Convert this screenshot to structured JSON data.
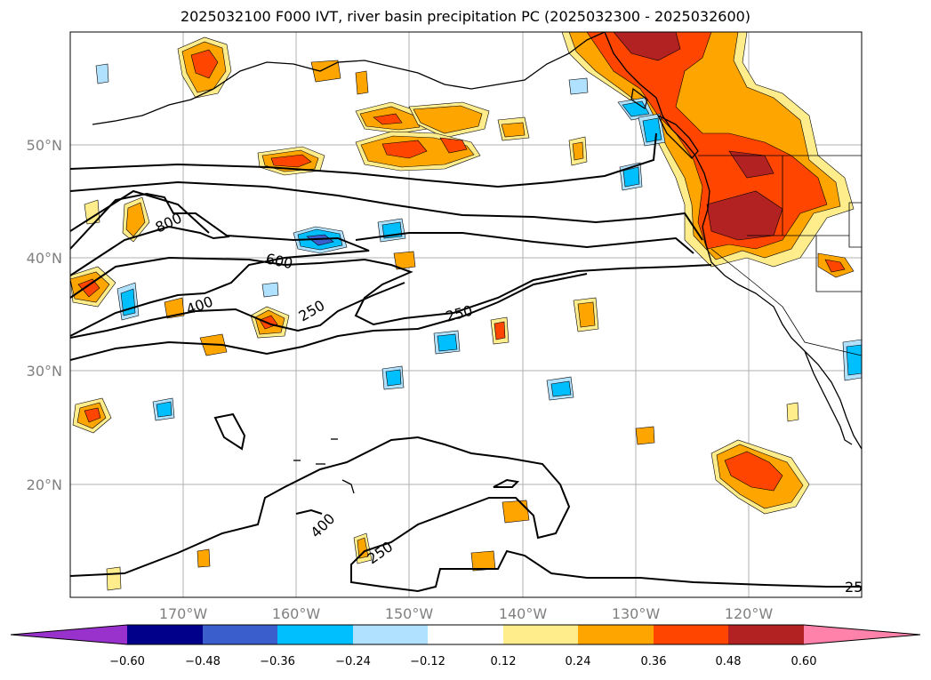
{
  "title": "2025032100 F000 IVT, river basin precipitation PC (2025032300 - 2025032600)",
  "map": {
    "lon_ticks": [
      "170°W",
      "160°W",
      "150°W",
      "140°W",
      "130°W",
      "120°W"
    ],
    "lat_ticks": [
      "50°N",
      "40°N",
      "30°N",
      "20°N"
    ],
    "ivt_contour_labels": [
      "800",
      "600",
      "400",
      "250",
      "250",
      "400",
      "250",
      "25"
    ]
  },
  "colorbar": {
    "ticks": [
      "−0.60",
      "−0.48",
      "−0.36",
      "−0.24",
      "−0.12",
      "0.12",
      "0.24",
      "0.36",
      "0.48",
      "0.60"
    ],
    "colors": {
      "under": "#9932cc",
      "bins": [
        "#00008b",
        "#3a5fcd",
        "#00bfff",
        "#b0e2ff",
        "#ffffff",
        "#ffec8b",
        "#ffa500",
        "#ff4500",
        "#b22222"
      ],
      "over": "#ff82ab"
    }
  }
}
